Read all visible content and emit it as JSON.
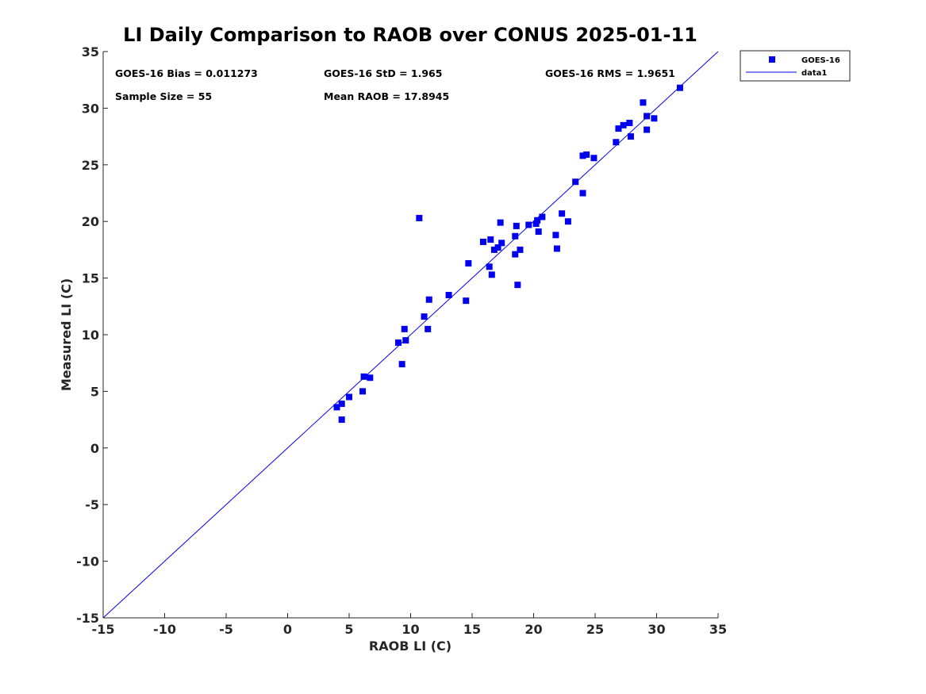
{
  "chart_data": {
    "type": "scatter",
    "title": "LI Daily Comparison to RAOB over CONUS 2025-01-11",
    "xlabel": "RAOB LI (C)",
    "ylabel": "Measured LI (C)",
    "xlim": [
      -15,
      35
    ],
    "ylim": [
      -15,
      35
    ],
    "xticks": [
      "-15",
      "-10",
      "-5",
      "0",
      "5",
      "10",
      "15",
      "20",
      "25",
      "30",
      "35"
    ],
    "yticks": [
      "35",
      "30",
      "25",
      "20",
      "15",
      "10",
      "5",
      "0",
      "-5",
      "-10",
      "-15"
    ],
    "grid": false,
    "legend_position": "outside top-right",
    "annotations": [
      "GOES-16 Bias = 0.011273",
      "GOES-16 StD = 1.965",
      "GOES-16 RMS = 1.9651",
      "Sample Size = 55",
      "Mean RAOB = 17.8945"
    ],
    "series": [
      {
        "name": "GOES-16",
        "kind": "scatter",
        "marker": "square",
        "color": "#0000ee",
        "points": [
          [
            4.0,
            3.6
          ],
          [
            4.4,
            3.9
          ],
          [
            4.4,
            2.5
          ],
          [
            5.0,
            4.5
          ],
          [
            6.1,
            5.0
          ],
          [
            6.2,
            6.3
          ],
          [
            6.7,
            6.2
          ],
          [
            9.0,
            9.3
          ],
          [
            9.3,
            7.4
          ],
          [
            9.5,
            10.5
          ],
          [
            9.6,
            9.5
          ],
          [
            10.7,
            20.3
          ],
          [
            11.1,
            11.6
          ],
          [
            11.4,
            10.5
          ],
          [
            11.5,
            13.1
          ],
          [
            13.1,
            13.5
          ],
          [
            14.5,
            13.0
          ],
          [
            14.7,
            16.3
          ],
          [
            15.9,
            18.2
          ],
          [
            16.4,
            16.0
          ],
          [
            16.5,
            18.4
          ],
          [
            16.6,
            15.3
          ],
          [
            16.8,
            17.5
          ],
          [
            17.1,
            17.7
          ],
          [
            17.3,
            19.9
          ],
          [
            17.4,
            18.1
          ],
          [
            18.5,
            17.1
          ],
          [
            18.5,
            18.7
          ],
          [
            18.6,
            19.6
          ],
          [
            18.7,
            14.4
          ],
          [
            18.9,
            17.5
          ],
          [
            19.6,
            19.7
          ],
          [
            20.2,
            19.8
          ],
          [
            20.3,
            20.1
          ],
          [
            20.4,
            19.1
          ],
          [
            20.7,
            20.4
          ],
          [
            21.8,
            18.8
          ],
          [
            21.9,
            17.6
          ],
          [
            22.3,
            20.7
          ],
          [
            22.8,
            20.0
          ],
          [
            23.4,
            23.5
          ],
          [
            24.0,
            22.5
          ],
          [
            24.0,
            25.8
          ],
          [
            24.3,
            25.9
          ],
          [
            24.9,
            25.6
          ],
          [
            26.7,
            27.0
          ],
          [
            26.9,
            28.2
          ],
          [
            27.3,
            28.5
          ],
          [
            27.8,
            28.7
          ],
          [
            27.9,
            27.5
          ],
          [
            28.9,
            30.5
          ],
          [
            29.2,
            29.3
          ],
          [
            29.2,
            28.1
          ],
          [
            29.8,
            29.1
          ],
          [
            31.9,
            31.8
          ]
        ]
      },
      {
        "name": "data1",
        "kind": "line",
        "color": "#0000ee",
        "points": [
          [
            -15,
            -15
          ],
          [
            35,
            35
          ]
        ]
      }
    ]
  }
}
